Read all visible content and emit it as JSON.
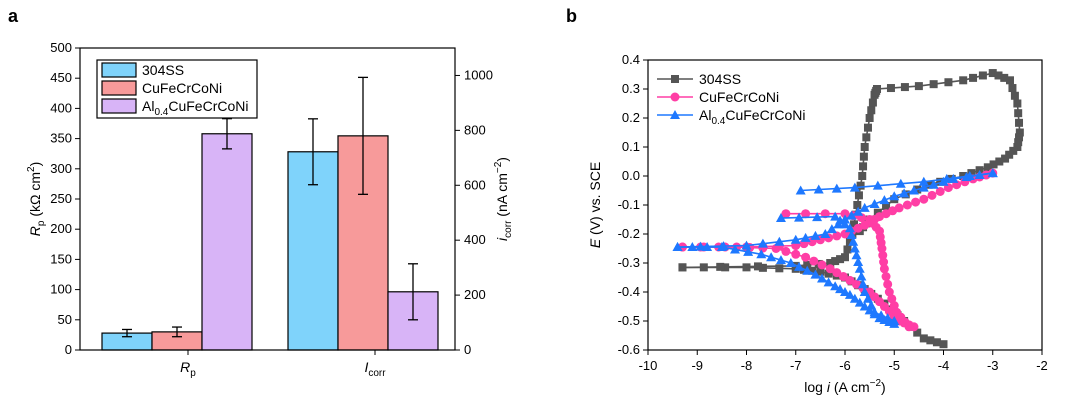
{
  "panel_a": {
    "letter": "a"
  },
  "panel_b": {
    "letter": "b"
  },
  "chart_data": [
    {
      "type": "bar",
      "title": "",
      "categories": [
        "Rp",
        "Icorr"
      ],
      "category_labels": [
        {
          "main": "R",
          "sub": "p"
        },
        {
          "main": "I",
          "sub": "corr"
        }
      ],
      "left_axis": {
        "label_main": "R",
        "label_sub": "p",
        "label_rest": " (kΩ cm",
        "label_sup": "2",
        "label_end": ")",
        "ylim": [
          0,
          500
        ],
        "ticks": [
          0,
          50,
          100,
          150,
          200,
          250,
          300,
          350,
          400,
          450,
          500
        ]
      },
      "right_axis": {
        "label_main": "i",
        "label_sub": "corr",
        "label_rest": " (nA cm",
        "label_sup": "−2",
        "label_end": ")",
        "ylim": [
          0,
          1100
        ],
        "ticks": [
          0,
          200,
          400,
          600,
          800,
          1000
        ]
      },
      "series": [
        {
          "name": "304SS",
          "color": "#7fd3fb",
          "legend": {
            "main": "304SS"
          },
          "values": [
            28,
            722
          ],
          "errors": [
            6,
            120
          ],
          "axes": [
            "left",
            "right"
          ]
        },
        {
          "name": "CuFeCrCoNi",
          "color": "#f79a9a",
          "legend": {
            "main": "CuFeCrCoNi"
          },
          "values": [
            30,
            780
          ],
          "errors": [
            8,
            213
          ],
          "axes": [
            "left",
            "right"
          ]
        },
        {
          "name": "Al0.4CuFeCrCoNi",
          "color": "#d8b4f7",
          "legend": {
            "main": "Al",
            "sub": "0.4",
            "rest": "CuFeCrCoNi"
          },
          "values": [
            358,
            212
          ],
          "errors": [
            25,
            102
          ],
          "axes": [
            "left",
            "right"
          ]
        }
      ]
    },
    {
      "type": "line",
      "title": "",
      "xlabel": {
        "pre": "log ",
        "ital": "i",
        "rest": " (A cm",
        "sup": "−2",
        "end": ")"
      },
      "ylabel": {
        "ital": "E",
        "rest": " (V) vs. SCE"
      },
      "xlim": [
        -10,
        -2
      ],
      "ylim": [
        -0.6,
        0.4
      ],
      "xticks": [
        -10,
        -9,
        -8,
        -7,
        -6,
        -5,
        -4,
        -3,
        -2
      ],
      "yticks": [
        -0.6,
        -0.5,
        -0.4,
        -0.3,
        -0.2,
        -0.1,
        0.0,
        0.1,
        0.2,
        0.3,
        0.4
      ],
      "series": [
        {
          "name": "304SS",
          "color": "#555555",
          "marker": "square",
          "legend": {
            "main": "304SS"
          },
          "cathodic": [
            [
              -4.0,
              -0.58
            ],
            [
              -4.4,
              -0.56
            ],
            [
              -4.8,
              -0.5
            ],
            [
              -5.2,
              -0.44
            ],
            [
              -5.6,
              -0.39
            ],
            [
              -6.0,
              -0.35
            ],
            [
              -6.5,
              -0.33
            ],
            [
              -7.0,
              -0.32
            ],
            [
              -8.0,
              -0.315
            ],
            [
              -9.3,
              -0.315
            ]
          ],
          "anodic": [
            [
              -9.3,
              -0.315
            ],
            [
              -7.0,
              -0.31
            ],
            [
              -6.3,
              -0.3
            ],
            [
              -6.0,
              -0.28
            ],
            [
              -5.85,
              -0.2
            ],
            [
              -5.75,
              -0.1
            ],
            [
              -5.65,
              0.0
            ],
            [
              -5.6,
              0.1
            ],
            [
              -5.5,
              0.2
            ],
            [
              -5.4,
              0.28
            ],
            [
              -5.35,
              0.3
            ],
            [
              -4.5,
              0.31
            ],
            [
              -3.6,
              0.33
            ],
            [
              -3.0,
              0.355
            ],
            [
              -2.65,
              0.33
            ],
            [
              -2.5,
              0.25
            ],
            [
              -2.45,
              0.15
            ],
            [
              -2.5,
              0.1
            ],
            [
              -2.75,
              0.06
            ],
            [
              -3.1,
              0.03
            ],
            [
              -3.6,
              0.0
            ],
            [
              -4.3,
              -0.03
            ],
            [
              -5.0,
              -0.08
            ],
            [
              -5.5,
              -0.15
            ],
            [
              -5.7,
              -0.19
            ]
          ]
        },
        {
          "name": "CuFeCrCoNi",
          "color": "#ff3ea5",
          "marker": "circle",
          "legend": {
            "main": "CuFeCrCoNi"
          },
          "cathodic": [
            [
              -4.6,
              -0.52
            ],
            [
              -4.9,
              -0.5
            ],
            [
              -5.2,
              -0.45
            ],
            [
              -5.5,
              -0.4
            ],
            [
              -5.9,
              -0.36
            ],
            [
              -6.3,
              -0.32
            ],
            [
              -6.8,
              -0.28
            ],
            [
              -7.4,
              -0.25
            ],
            [
              -8.2,
              -0.245
            ],
            [
              -9.3,
              -0.245
            ]
          ],
          "anodic": [
            [
              -9.3,
              -0.245
            ],
            [
              -8.0,
              -0.245
            ],
            [
              -7.0,
              -0.24
            ],
            [
              -6.5,
              -0.22
            ],
            [
              -6.0,
              -0.2
            ],
            [
              -5.6,
              -0.17
            ],
            [
              -5.3,
              -0.14
            ],
            [
              -4.9,
              -0.11
            ],
            [
              -4.4,
              -0.08
            ],
            [
              -3.9,
              -0.04
            ],
            [
              -3.4,
              -0.01
            ],
            [
              -3.0,
              0.01
            ]
          ],
          "branch3": [
            [
              -7.2,
              -0.13
            ],
            [
              -6.0,
              -0.13
            ],
            [
              -5.5,
              -0.15
            ],
            [
              -5.3,
              -0.19
            ],
            [
              -5.25,
              -0.25
            ],
            [
              -5.2,
              -0.32
            ],
            [
              -5.1,
              -0.4
            ],
            [
              -4.95,
              -0.47
            ],
            [
              -4.7,
              -0.52
            ]
          ]
        },
        {
          "name": "Al0.4CuFeCrCoNi",
          "color": "#1e78ff",
          "marker": "triangle",
          "legend": {
            "main": "Al",
            "sub": "0.4",
            "rest": "CuFeCrCoNi"
          },
          "cathodic": [
            [
              -5.0,
              -0.51
            ],
            [
              -5.3,
              -0.49
            ],
            [
              -5.6,
              -0.45
            ],
            [
              -5.9,
              -0.41
            ],
            [
              -6.2,
              -0.38
            ],
            [
              -6.6,
              -0.34
            ],
            [
              -7.1,
              -0.3
            ],
            [
              -7.7,
              -0.27
            ],
            [
              -8.5,
              -0.245
            ],
            [
              -9.4,
              -0.245
            ]
          ],
          "anodic": [
            [
              -9.4,
              -0.245
            ],
            [
              -8.0,
              -0.24
            ],
            [
              -7.0,
              -0.22
            ],
            [
              -6.4,
              -0.2
            ],
            [
              -6.0,
              -0.15
            ],
            [
              -5.6,
              -0.11
            ],
            [
              -5.0,
              -0.07
            ],
            [
              -4.4,
              -0.04
            ],
            [
              -3.8,
              -0.01
            ],
            [
              -3.0,
              0.01
            ]
          ],
          "branch3": [
            [
              -7.3,
              -0.145
            ],
            [
              -6.2,
              -0.14
            ],
            [
              -5.9,
              -0.18
            ],
            [
              -5.8,
              -0.25
            ],
            [
              -5.7,
              -0.32
            ],
            [
              -5.6,
              -0.4
            ],
            [
              -5.4,
              -0.47
            ],
            [
              -5.0,
              -0.5
            ]
          ],
          "branch4": [
            [
              -6.9,
              -0.05
            ],
            [
              -5.8,
              -0.04
            ],
            [
              -4.4,
              -0.02
            ],
            [
              -3.0,
              0.01
            ]
          ]
        }
      ]
    }
  ]
}
